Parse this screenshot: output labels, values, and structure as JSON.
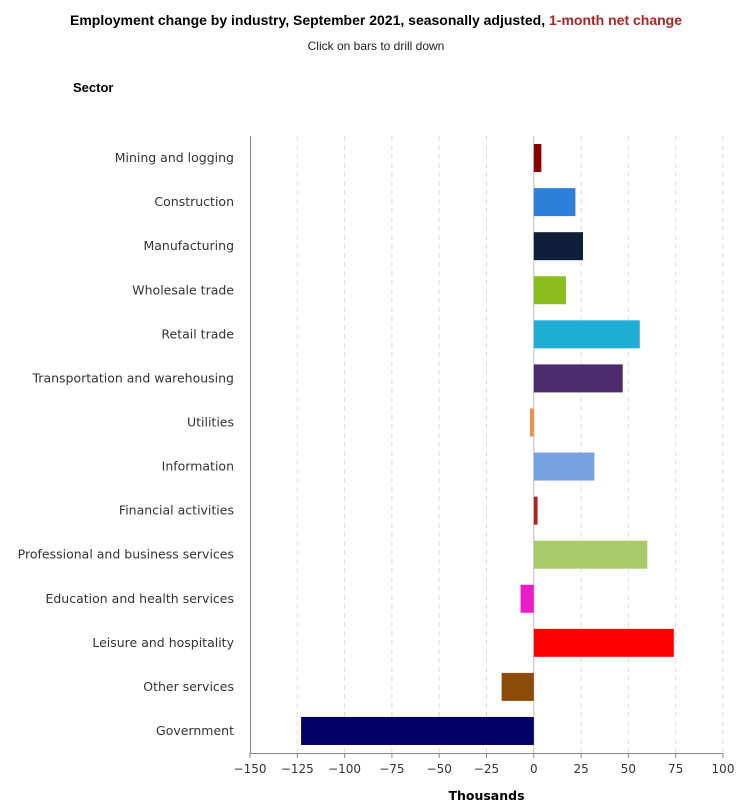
{
  "header": {
    "title": "Employment change by industry, September 2021, seasonally adjusted, ",
    "title_accent": "1-month net change",
    "title_accent_color": "#b22222",
    "subtitle": "Click on bars to drill down",
    "category_heading": "Sector"
  },
  "chart_data": {
    "type": "bar",
    "orientation": "horizontal",
    "xlabel": "Thousands",
    "xlim": [
      -150,
      100
    ],
    "xticks": [
      -150,
      -125,
      -100,
      -75,
      -50,
      -25,
      0,
      25,
      50,
      75,
      100
    ],
    "grid": true,
    "categories": [
      "Mining and logging",
      "Construction",
      "Manufacturing",
      "Wholesale trade",
      "Retail trade",
      "Transportation and warehousing",
      "Utilities",
      "Information",
      "Financial activities",
      "Professional and business services",
      "Education and health services",
      "Leisure and hospitality",
      "Other services",
      "Government"
    ],
    "values": [
      4,
      22,
      26,
      17,
      56,
      47,
      -2,
      32,
      2,
      60,
      -7,
      74,
      -17,
      -123
    ],
    "colors": [
      "#8b0000",
      "#2e7fd9",
      "#0f1f3a",
      "#8cbd1f",
      "#1eadd3",
      "#4b2a6e",
      "#f0914a",
      "#76a1e3",
      "#b22222",
      "#a8cc6a",
      "#e91ec9",
      "#ff0000",
      "#8b4c0a",
      "#000066"
    ]
  }
}
